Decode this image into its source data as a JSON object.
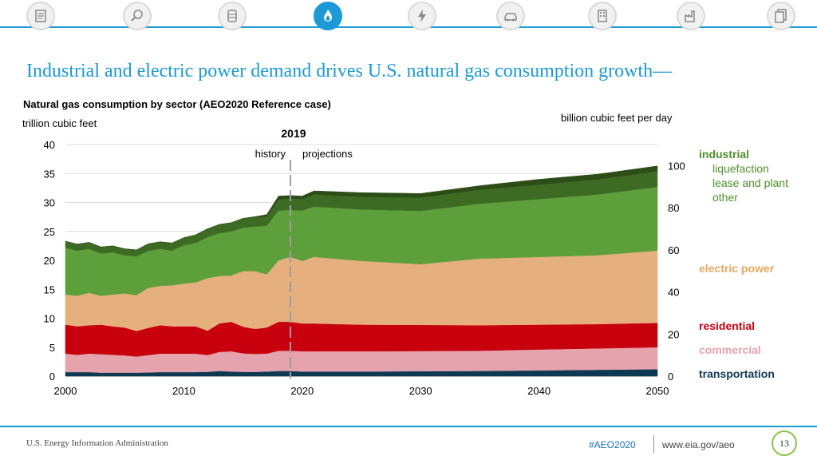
{
  "header": {
    "nav_icons": [
      "overview-icon",
      "search-analysis-icon",
      "oil-barrel-icon",
      "natural-gas-flame-icon",
      "electricity-bolt-icon",
      "transportation-car-icon",
      "buildings-icon",
      "industrial-factory-icon",
      "documents-icon"
    ],
    "active_icon": "natural-gas-flame-icon",
    "accent_color": "#1b9ad6"
  },
  "title": "Industrial and electric power demand drives U.S. natural gas consumption growth—",
  "chart_data": {
    "type": "area",
    "title": "Natural gas consumption by sector (AEO2020 Reference case)",
    "ylabel": "trillion cubic feet",
    "ylabel_right": "billion cubic feet per day",
    "xlim": [
      2000,
      2050
    ],
    "ylim": [
      0,
      40
    ],
    "ylim_right": [
      0,
      110
    ],
    "x_ticks": [
      "2000",
      "2010",
      "2020",
      "2030",
      "2040",
      "2050"
    ],
    "y_ticks": [
      "0",
      "5",
      "10",
      "15",
      "20",
      "25",
      "30",
      "35",
      "40"
    ],
    "y_ticks_right": [
      "0",
      "20",
      "40",
      "60",
      "80",
      "100"
    ],
    "grid": true,
    "annotation": {
      "year_label": "2019",
      "x": 2019,
      "left_text": "history",
      "right_text": "projections"
    },
    "x": [
      2000,
      2001,
      2002,
      2003,
      2004,
      2005,
      2006,
      2007,
      2008,
      2009,
      2010,
      2011,
      2012,
      2013,
      2014,
      2015,
      2016,
      2017,
      2018,
      2019,
      2020,
      2021,
      2025,
      2030,
      2035,
      2040,
      2045,
      2050
    ],
    "series": [
      {
        "name": "transportation",
        "label": "transportation",
        "color": "#0d3a52",
        "values": [
          0.7,
          0.7,
          0.7,
          0.6,
          0.6,
          0.6,
          0.6,
          0.65,
          0.7,
          0.7,
          0.7,
          0.7,
          0.75,
          0.9,
          0.8,
          0.75,
          0.75,
          0.8,
          0.9,
          0.9,
          0.8,
          0.8,
          0.8,
          0.85,
          0.9,
          1.0,
          1.1,
          1.2
        ]
      },
      {
        "name": "commercial",
        "label": "commercial",
        "color": "#e4a3ad",
        "values": [
          3.2,
          3.0,
          3.2,
          3.2,
          3.1,
          3.0,
          2.8,
          3.0,
          3.2,
          3.2,
          3.2,
          3.2,
          2.9,
          3.3,
          3.5,
          3.2,
          3.1,
          3.1,
          3.5,
          3.5,
          3.5,
          3.5,
          3.5,
          3.5,
          3.5,
          3.6,
          3.7,
          3.8
        ]
      },
      {
        "name": "residential",
        "label": "residential",
        "color": "#c8000e",
        "values": [
          5.0,
          4.9,
          4.9,
          5.1,
          4.9,
          4.8,
          4.4,
          4.7,
          4.9,
          4.7,
          4.7,
          4.7,
          4.2,
          4.9,
          5.1,
          4.6,
          4.3,
          4.5,
          5.0,
          5.0,
          4.8,
          4.8,
          4.6,
          4.5,
          4.4,
          4.3,
          4.2,
          4.2
        ]
      },
      {
        "name": "electric_power",
        "label": "electric power",
        "color": "#e5b07e",
        "values": [
          5.2,
          5.3,
          5.6,
          5.0,
          5.5,
          5.9,
          6.2,
          6.9,
          6.8,
          7.1,
          7.4,
          7.6,
          9.1,
          8.2,
          8.0,
          9.6,
          10.0,
          9.2,
          10.6,
          11.2,
          10.8,
          11.5,
          11.0,
          10.5,
          11.5,
          11.7,
          11.9,
          12.5
        ]
      },
      {
        "name": "industrial_other",
        "label": "other",
        "color": "#5d9f3b",
        "values": [
          8.1,
          7.8,
          7.6,
          7.3,
          7.3,
          6.6,
          6.7,
          6.4,
          6.4,
          6.0,
          6.6,
          6.8,
          7.1,
          7.4,
          7.6,
          7.5,
          7.7,
          8.4,
          8.6,
          8.1,
          8.7,
          8.7,
          8.9,
          9.2,
          9.5,
          10.0,
          10.5,
          11.0
        ]
      },
      {
        "name": "industrial_lease_plant",
        "label": "lease and plant",
        "color": "#3d6b23",
        "values": [
          1.1,
          1.1,
          1.1,
          1.1,
          1.1,
          1.1,
          1.1,
          1.2,
          1.2,
          1.3,
          1.3,
          1.4,
          1.4,
          1.5,
          1.5,
          1.6,
          1.6,
          1.6,
          1.9,
          2.0,
          2.0,
          2.1,
          2.2,
          2.3,
          2.4,
          2.5,
          2.6,
          2.7
        ]
      },
      {
        "name": "industrial_liquefaction",
        "label": "liquefaction",
        "color": "#2c4d17",
        "values": [
          0,
          0,
          0,
          0,
          0,
          0,
          0,
          0,
          0,
          0,
          0,
          0,
          0,
          0,
          0,
          0,
          0.1,
          0.3,
          0.6,
          0.5,
          0.5,
          0.6,
          0.7,
          0.7,
          0.7,
          0.9,
          0.9,
          0.9
        ]
      }
    ],
    "legend": {
      "placement": "right",
      "industrial": {
        "label": "industrial",
        "color": "#4e8f2a"
      },
      "subs": [
        {
          "label": "liquefaction",
          "color": "#4e8f2a"
        },
        {
          "label": "lease and plant",
          "color": "#4e8f2a"
        },
        {
          "label": "other",
          "color": "#4e8f2a"
        }
      ],
      "sectors": [
        {
          "label": "electric power",
          "color": "#e5a861"
        },
        {
          "label": "residential",
          "color": "#c8000e"
        },
        {
          "label": "commercial",
          "color": "#e4a3ad"
        },
        {
          "label": "transportation",
          "color": "#0d3a52"
        }
      ]
    }
  },
  "footer": {
    "org": "U.S. Energy Information Administration",
    "tag": "#AEO2020",
    "url": "www.eia.gov/aeo",
    "page": "13"
  }
}
